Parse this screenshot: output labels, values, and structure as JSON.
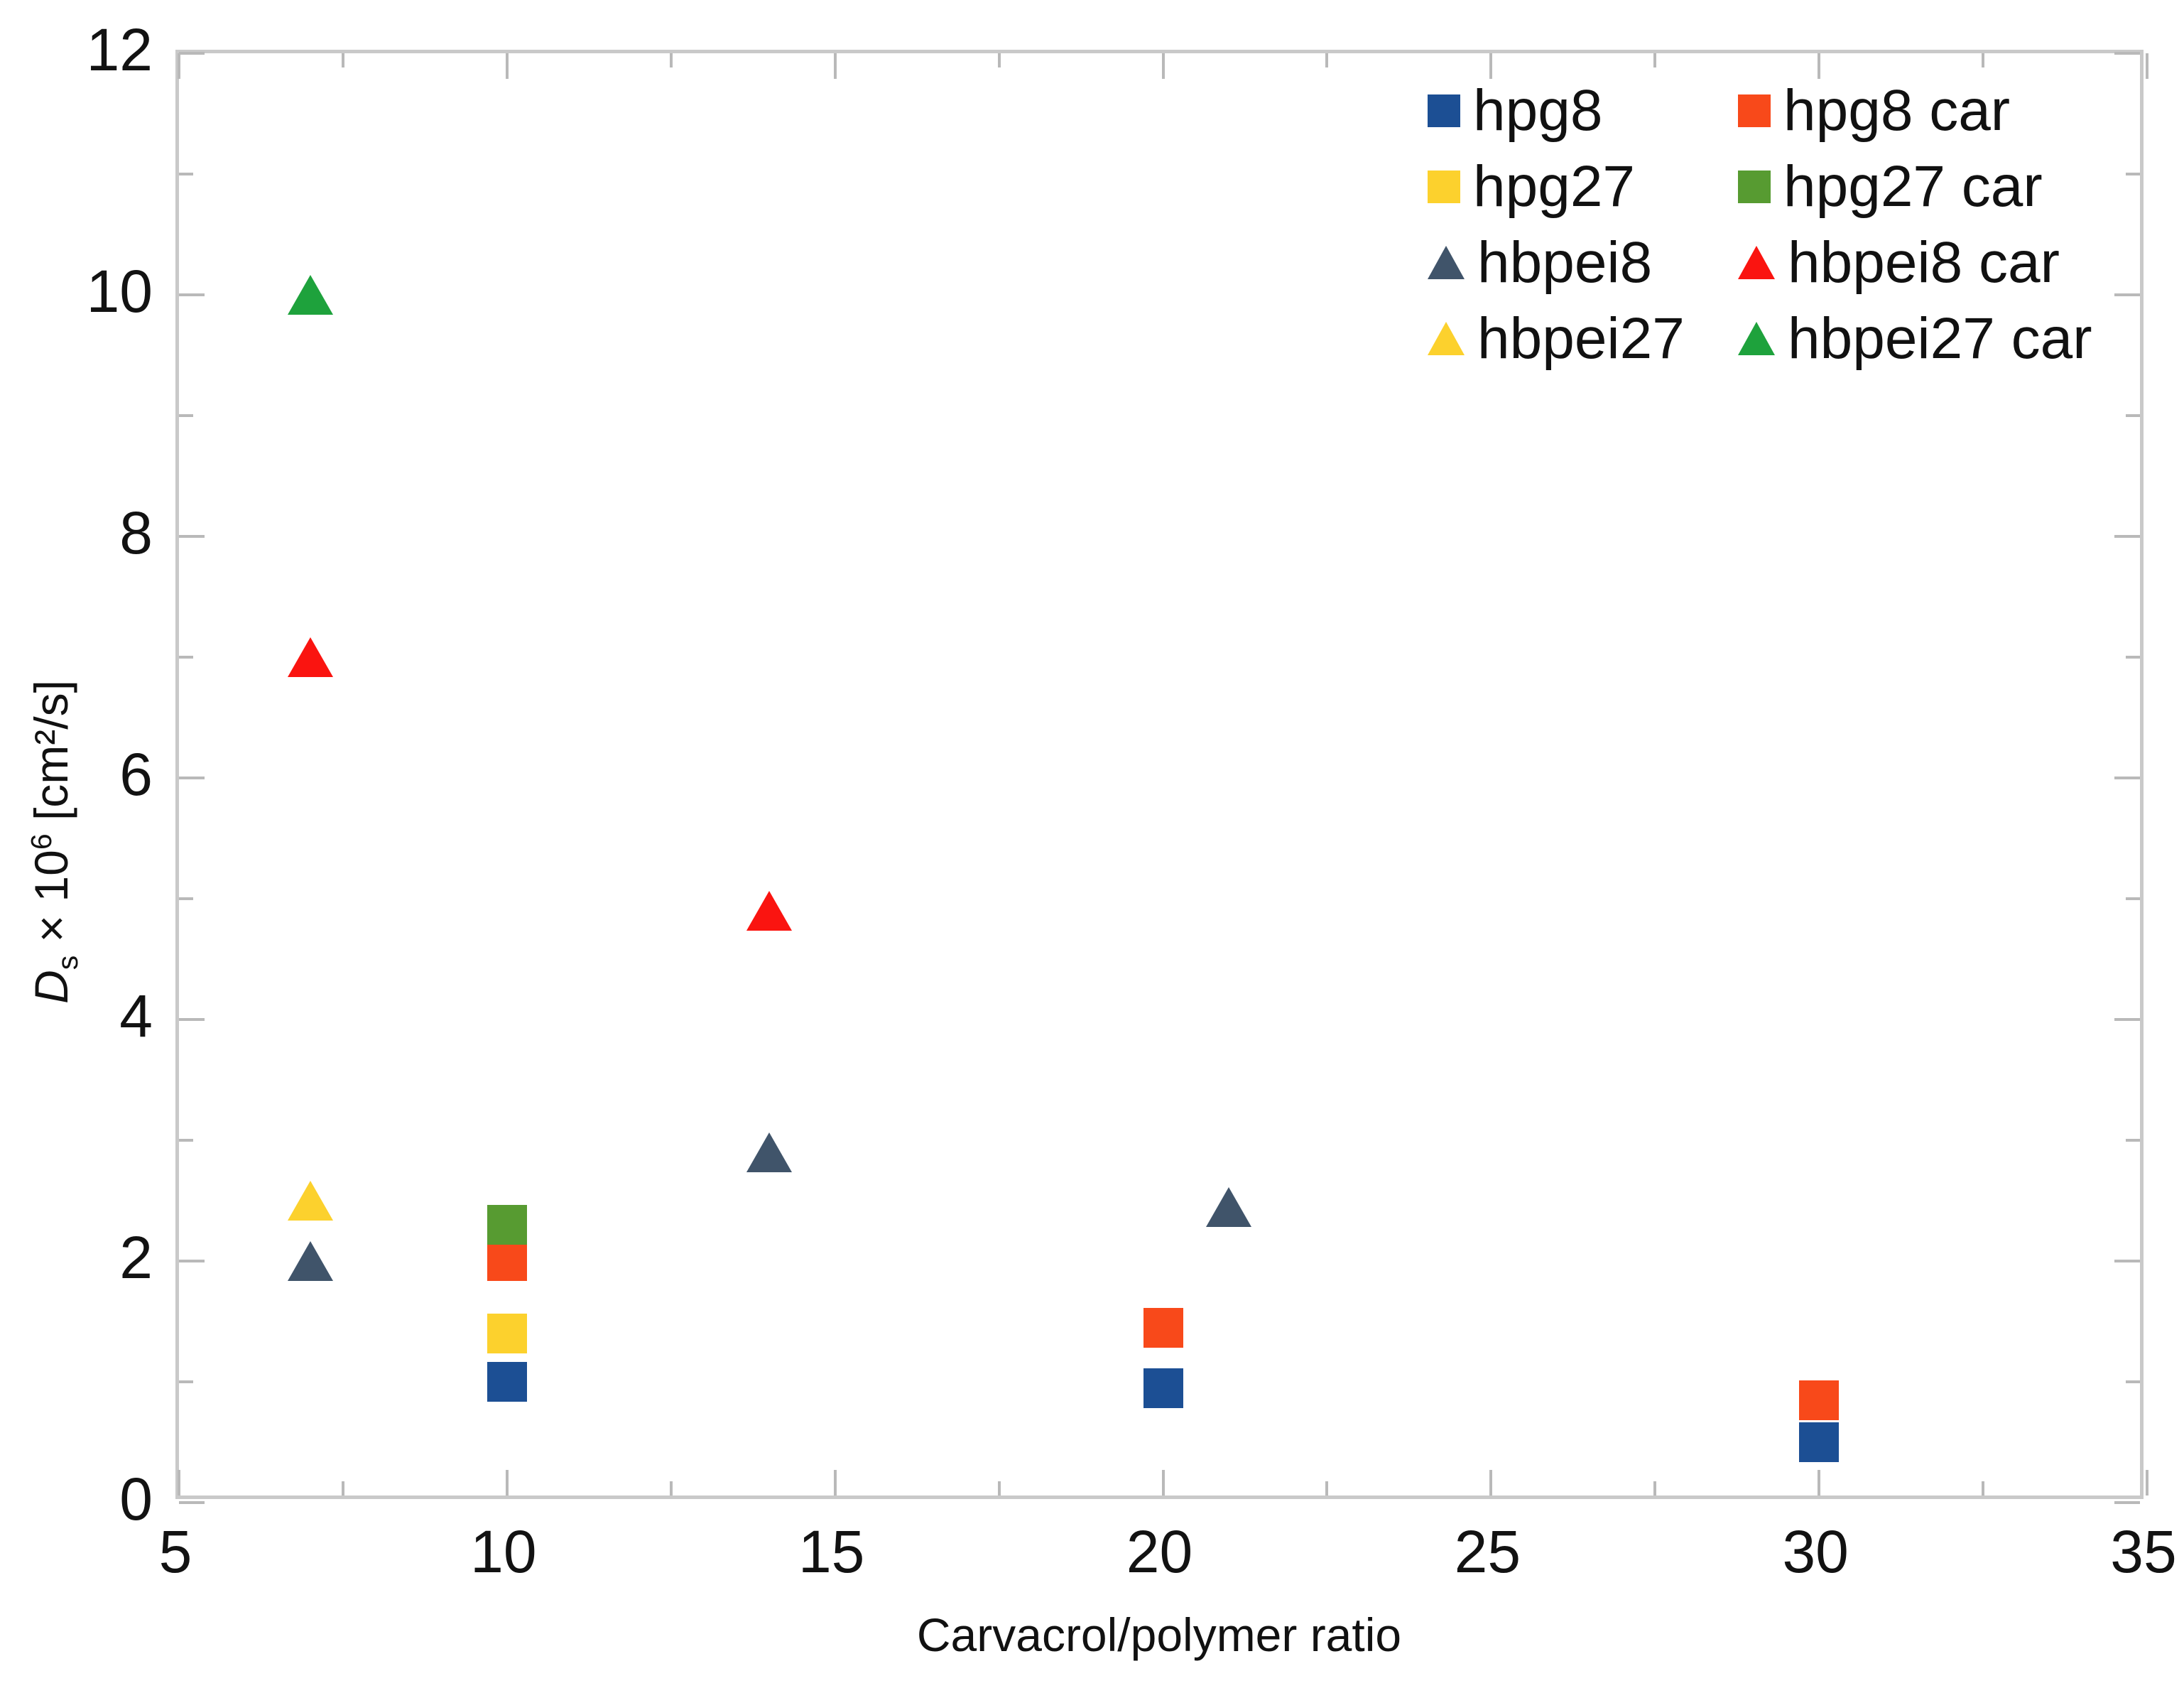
{
  "figure": {
    "background": "#ffffff",
    "spine_color": "#c9c9c9",
    "tick_color": "#b9b9b9",
    "text_color": "#111111"
  },
  "x_axis": {
    "title": "Carvacrol/polymer ratio",
    "min": 5,
    "max": 35,
    "major_ticks": [
      5,
      10,
      15,
      20,
      25,
      30,
      35
    ],
    "minor_ticks": [
      7.5,
      12.5,
      17.5,
      22.5,
      27.5,
      32.5
    ]
  },
  "y_axis": {
    "title_d": "D",
    "title_sub": "s",
    "title_mid": " × 10",
    "title_exp": "6",
    "title_units": " [cm²/s]",
    "min": 0,
    "max": 12,
    "major_ticks": [
      0,
      2,
      4,
      6,
      8,
      10,
      12
    ],
    "minor_ticks": [
      1,
      3,
      5,
      7,
      9,
      11
    ]
  },
  "chart_data": {
    "type": "scatter",
    "title": "",
    "xlabel": "Carvacrol/polymer ratio",
    "ylabel": "Ds × 10⁶ [cm²/s]",
    "xlim": [
      5,
      35
    ],
    "ylim": [
      0,
      12
    ],
    "grid": false,
    "legend_position": "upper right",
    "series": [
      {
        "name": "hpg8",
        "marker": "square",
        "color": "#1c4f94",
        "points": [
          [
            10,
            1.0
          ],
          [
            20,
            0.95
          ],
          [
            30,
            0.5
          ]
        ]
      },
      {
        "name": "hpg8 car",
        "marker": "square",
        "color": "#f8491a",
        "points": [
          [
            10,
            2.0
          ],
          [
            20,
            1.45
          ],
          [
            30,
            0.85
          ]
        ]
      },
      {
        "name": "hpg27",
        "marker": "square",
        "color": "#fcd12d",
        "points": [
          [
            10,
            1.4
          ]
        ]
      },
      {
        "name": "hpg27 car",
        "marker": "square",
        "color": "#579b31",
        "points": [
          [
            10,
            2.3
          ]
        ]
      },
      {
        "name": "hbpei8",
        "marker": "triangle",
        "color": "#40546a",
        "points": [
          [
            7,
            2.0
          ],
          [
            14,
            2.9
          ],
          [
            21,
            2.45
          ]
        ]
      },
      {
        "name": "hbpei8 car",
        "marker": "triangle",
        "color": "#fa1410",
        "points": [
          [
            7,
            7.0
          ],
          [
            14,
            4.9
          ]
        ]
      },
      {
        "name": "hbpei27",
        "marker": "triangle",
        "color": "#fcd12d",
        "points": [
          [
            7,
            2.5
          ]
        ]
      },
      {
        "name": "hbpei27 car",
        "marker": "triangle",
        "color": "#1ea23c",
        "points": [
          [
            7,
            10.0
          ]
        ]
      }
    ]
  }
}
